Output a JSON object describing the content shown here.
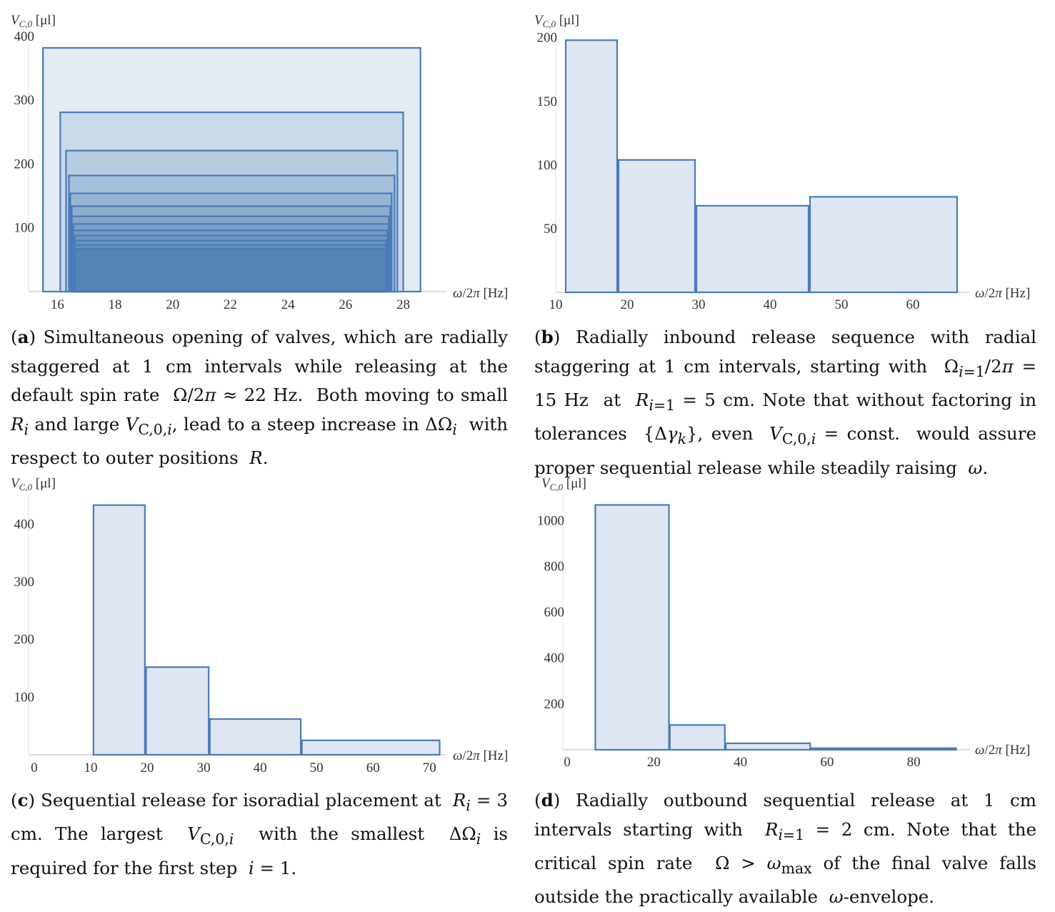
{
  "panels": [
    {
      "id": "a",
      "caption_letter": "a",
      "caption_text": "Simultaneous opening of valves, which are radially staggered at 1 cm intervals while releasing at the default spin rate Ω/2π ≈ 22 Hz. Both moving to small Ri and large VC,0,i, lead to a steep increase in ΔΩi with respect to outer positions R."
    },
    {
      "id": "b",
      "caption_letter": "b",
      "caption_text": "Radially inbound release sequence with radial staggering at 1 cm intervals, starting with Ωi=1/2π = 15 Hz at Ri=1 = 5 cm. Note that without factoring in tolerances {Δγk}, even VC,0,i = const. would assure proper sequential release while steadily raising ω."
    },
    {
      "id": "c",
      "caption_letter": "c",
      "caption_text": "Sequential release for isoradial placement at Ri = 3 cm. The largest VC,0,i with the smallest ΔΩi is required for the first step i = 1."
    },
    {
      "id": "d",
      "caption_letter": "d",
      "caption_text": "Radially outbound sequential release at 1 cm intervals starting with Ri=1 = 2 cm. Note that the critical spin rate Ω > ωmax of the final valve falls outside the practically available ω-envelope."
    }
  ],
  "chart_data": [
    {
      "panel": "a",
      "type": "bar",
      "ylabel": "V_C,0 [μl]",
      "xlabel": "ω/2π [Hz]",
      "xlim": [
        15,
        29.5
      ],
      "ylim": [
        0,
        410
      ],
      "xticks": [
        16,
        18,
        20,
        22,
        24,
        26,
        28
      ],
      "yticks": [
        100,
        200,
        300,
        400
      ],
      "nested_rectangles": [
        {
          "x0": 15.5,
          "x1": 28.6,
          "value": 382
        },
        {
          "x0": 16.1,
          "x1": 28.0,
          "value": 281
        },
        {
          "x0": 16.3,
          "x1": 27.8,
          "value": 221
        },
        {
          "x0": 16.4,
          "x1": 27.7,
          "value": 182
        },
        {
          "x0": 16.45,
          "x1": 27.6,
          "value": 154
        },
        {
          "x0": 16.5,
          "x1": 27.55,
          "value": 134
        },
        {
          "x0": 16.5,
          "x1": 27.5,
          "value": 118
        },
        {
          "x0": 16.55,
          "x1": 27.5,
          "value": 106
        },
        {
          "x0": 16.55,
          "x1": 27.45,
          "value": 96
        },
        {
          "x0": 16.6,
          "x1": 27.45,
          "value": 88
        },
        {
          "x0": 16.6,
          "x1": 27.4,
          "value": 80
        },
        {
          "x0": 16.6,
          "x1": 27.4,
          "value": 73
        },
        {
          "x0": 16.6,
          "x1": 27.4,
          "value": 67
        }
      ]
    },
    {
      "panel": "b",
      "type": "bar",
      "ylabel": "V_C,0 [μl]",
      "xlabel": "ω/2π [Hz]",
      "xlim": [
        10,
        68
      ],
      "ylim": [
        0,
        206
      ],
      "xticks": [
        10,
        20,
        30,
        40,
        50,
        60
      ],
      "yticks": [
        50,
        100,
        150,
        200
      ],
      "bars": [
        {
          "x0": 11.4,
          "x1": 18.6,
          "value": 198
        },
        {
          "x0": 18.8,
          "x1": 29.5,
          "value": 104
        },
        {
          "x0": 29.7,
          "x1": 45.4,
          "value": 68
        },
        {
          "x0": 45.6,
          "x1": 66.2,
          "value": 75
        }
      ]
    },
    {
      "panel": "c",
      "type": "bar",
      "ylabel": "V_C,0 [μl]",
      "xlabel": "ω/2π [Hz]",
      "xlim": [
        -1,
        73
      ],
      "ylim": [
        0,
        450
      ],
      "xticks": [
        0,
        10,
        20,
        30,
        40,
        50,
        60,
        70
      ],
      "yticks": [
        100,
        200,
        300,
        400
      ],
      "bars": [
        {
          "x0": 10.5,
          "x1": 19.6,
          "value": 433
        },
        {
          "x0": 19.8,
          "x1": 30.9,
          "value": 152
        },
        {
          "x0": 31.1,
          "x1": 47.2,
          "value": 62
        },
        {
          "x0": 47.4,
          "x1": 71.8,
          "value": 25
        }
      ]
    },
    {
      "panel": "d",
      "type": "bar",
      "ylabel": "V_C,0 [μl]",
      "xlabel": "ω/2π [Hz]",
      "xlim": [
        -1,
        93
      ],
      "ylim": [
        0,
        1110
      ],
      "xticks": [
        0,
        20,
        40,
        60,
        80
      ],
      "yticks": [
        200,
        400,
        600,
        800,
        1000
      ],
      "bars": [
        {
          "x0": 6.5,
          "x1": 23.5,
          "value": 1068
        },
        {
          "x0": 23.7,
          "x1": 36.4,
          "value": 108
        },
        {
          "x0": 36.6,
          "x1": 56.1,
          "value": 28
        },
        {
          "x0": 56.3,
          "x1": 89.8,
          "value": 7
        }
      ]
    }
  ]
}
